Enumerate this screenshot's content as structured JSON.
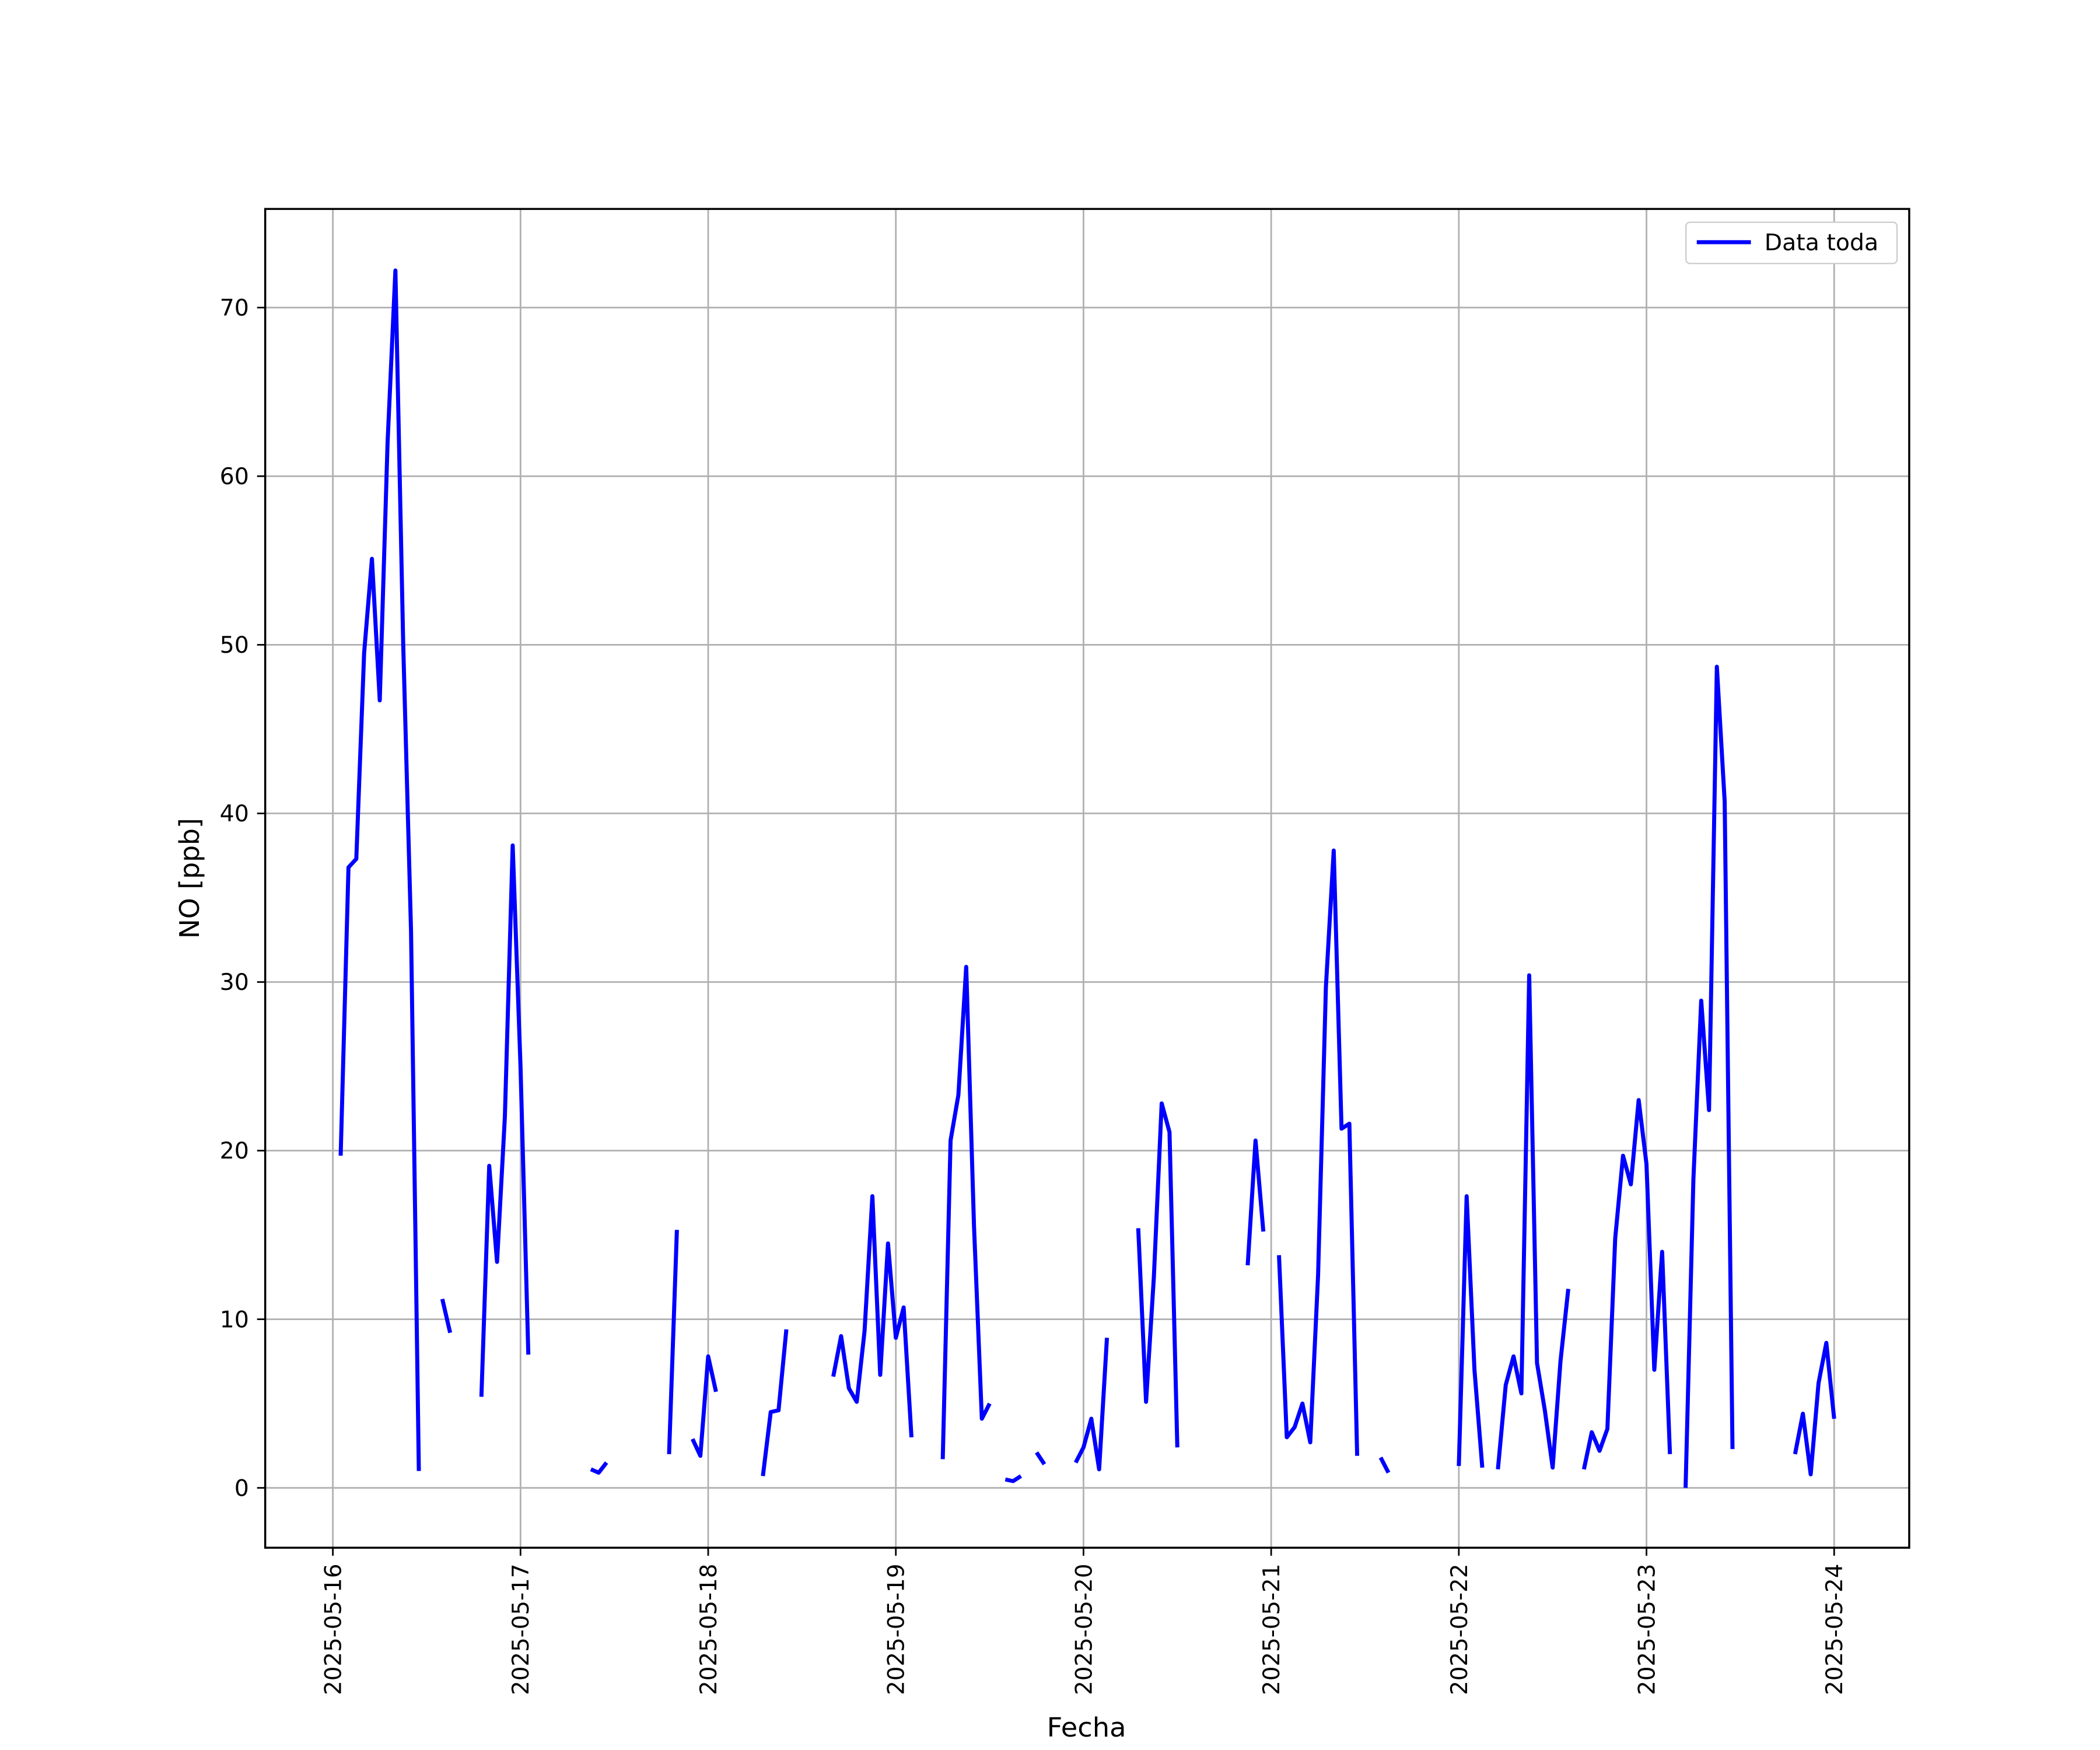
{
  "chart_data": {
    "type": "line",
    "xlabel": "Fecha",
    "ylabel": "NO [ppb]",
    "x": [
      1,
      2,
      3,
      4,
      5,
      6,
      7,
      8,
      9,
      10,
      11,
      12,
      14,
      15,
      16,
      19,
      20,
      21,
      22,
      23,
      24,
      25,
      26,
      33,
      34,
      35,
      36,
      43,
      44,
      45,
      46,
      47,
      48,
      49,
      50,
      55,
      56,
      57,
      58,
      59,
      64,
      65,
      66,
      67,
      68,
      69,
      70,
      71,
      72,
      73,
      74,
      75,
      78,
      79,
      80,
      81,
      82,
      83,
      84,
      85,
      86,
      87,
      88,
      89,
      90,
      91,
      92,
      95,
      96,
      97,
      98,
      99,
      100,
      103,
      104,
      105,
      106,
      107,
      108,
      109,
      117,
      118,
      119,
      120,
      121,
      122,
      123,
      124,
      125,
      126,
      127,
      128,
      129,
      130,
      131,
      132,
      134,
      135,
      136,
      144,
      145,
      146,
      147,
      148,
      149,
      150,
      151,
      152,
      153,
      154,
      155,
      156,
      157,
      158,
      159,
      160,
      161,
      162,
      163,
      164,
      165,
      166,
      167,
      168,
      169,
      170,
      171,
      172,
      173,
      174,
      175,
      176,
      177,
      178,
      179,
      180,
      187,
      188,
      189,
      190,
      191,
      192
    ],
    "series": [
      {
        "name": "Data toda",
        "color": "#0000ff",
        "values": [
          19.7,
          36.8,
          37.3,
          49.5,
          55.1,
          46.7,
          62,
          72.2,
          50,
          33,
          1,
          null,
          11.2,
          9.2,
          null,
          5.4,
          19.1,
          13.4,
          22,
          38.1,
          25,
          7.9,
          null,
          1.1,
          0.9,
          1.5,
          null,
          2.0,
          15.3,
          null,
          2.9,
          1.9,
          7.8,
          5.7,
          null,
          0.7,
          4.5,
          4.6,
          9.4,
          null,
          6.6,
          9.0,
          5.9,
          5.1,
          9.3,
          17.3,
          6.7,
          14.5,
          8.9,
          10.7,
          3.0,
          null,
          1.7,
          20.6,
          23.3,
          30.9,
          15.5,
          4.1,
          5.0,
          null,
          0.5,
          0.4,
          0.7,
          null,
          2.1,
          1.4,
          null,
          1.5,
          2.4,
          4.1,
          1.1,
          8.9,
          null,
          15.4,
          5.1,
          12.5,
          22.8,
          21.1,
          2.4,
          null,
          13.2,
          20.6,
          15.2,
          null,
          13.8,
          3.0,
          3.6,
          5.0,
          2.7,
          12.6,
          29.7,
          37.8,
          21.3,
          21.6,
          1.9,
          null,
          1.8,
          0.9,
          null,
          1.3,
          17.3,
          7.0,
          1.2,
          null,
          1.1,
          6.1,
          7.8,
          5.6,
          30.4,
          7.4,
          4.6,
          1.2,
          7.5,
          11.8,
          null,
          1.1,
          3.3,
          2.2,
          3.5,
          14.8,
          19.7,
          18.0,
          23.0,
          19.2,
          7.0,
          14.0,
          2.0,
          null,
          0.0,
          18.3,
          28.9,
          22.4,
          48.7,
          40.7,
          2.3,
          null,
          2.0,
          4.4,
          0.8,
          6.2,
          8.6,
          4.1
        ]
      }
    ],
    "xlim": [
      -8.65,
      201.6
    ],
    "xticks": [
      {
        "value": 0,
        "label": "2025-05-16"
      },
      {
        "value": 24,
        "label": "2025-05-17"
      },
      {
        "value": 48,
        "label": "2025-05-18"
      },
      {
        "value": 72,
        "label": "2025-05-19"
      },
      {
        "value": 96,
        "label": "2025-05-20"
      },
      {
        "value": 120,
        "label": "2025-05-21"
      },
      {
        "value": 144,
        "label": "2025-05-22"
      },
      {
        "value": 168,
        "label": "2025-05-23"
      },
      {
        "value": 192,
        "label": "2025-05-24"
      }
    ],
    "ylim": [
      -3.55,
      75.85
    ],
    "yticks": [
      0,
      10,
      20,
      30,
      40,
      50,
      60,
      70
    ],
    "grid": true,
    "legend": "upper right"
  }
}
